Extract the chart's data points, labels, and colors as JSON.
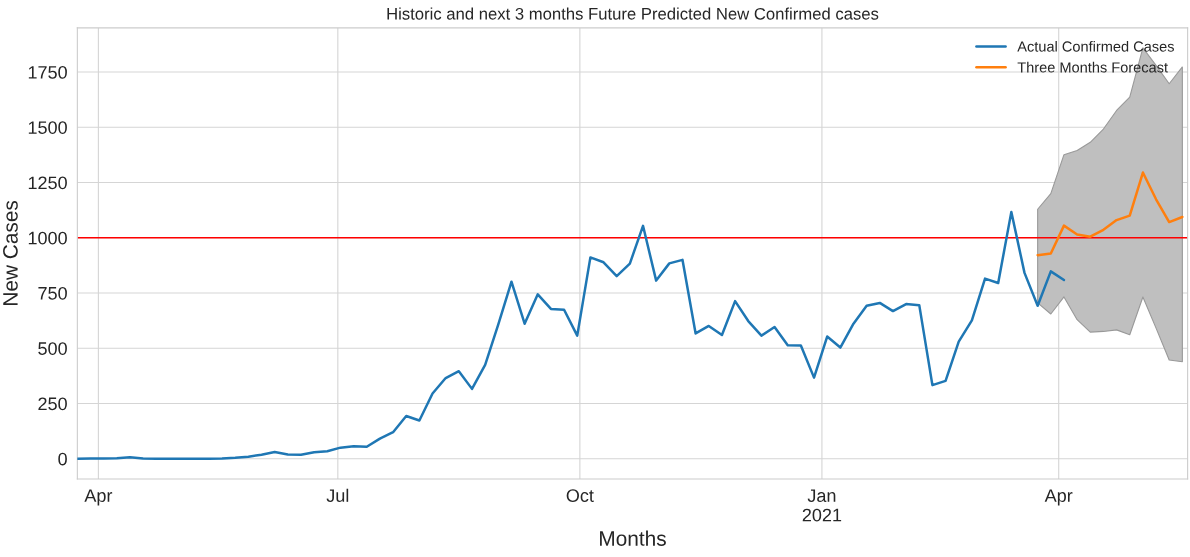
{
  "chart_data": {
    "type": "line",
    "title": "Historic and next 3 months Future Predicted New Confirmed cases",
    "xlabel": "Months",
    "ylabel": "New Cases",
    "series": [
      {
        "name": "Actual Confirmed Cases",
        "color": "#1f77b4",
        "x": [
          "2020-03-24",
          "2020-03-29",
          "2020-04-03",
          "2020-04-08",
          "2020-04-13",
          "2020-04-18",
          "2020-04-23",
          "2020-04-28",
          "2020-05-03",
          "2020-05-08",
          "2020-05-13",
          "2020-05-18",
          "2020-05-23",
          "2020-05-28",
          "2020-06-02",
          "2020-06-07",
          "2020-06-12",
          "2020-06-17",
          "2020-06-22",
          "2020-06-27",
          "2020-07-02",
          "2020-07-07",
          "2020-07-12",
          "2020-07-17",
          "2020-07-22",
          "2020-07-27",
          "2020-08-01",
          "2020-08-06",
          "2020-08-11",
          "2020-08-16",
          "2020-08-21",
          "2020-08-26",
          "2020-08-31",
          "2020-09-05",
          "2020-09-10",
          "2020-09-15",
          "2020-09-20",
          "2020-09-25",
          "2020-09-30",
          "2020-10-05",
          "2020-10-10",
          "2020-10-15",
          "2020-10-20",
          "2020-10-25",
          "2020-10-30",
          "2020-11-04",
          "2020-11-09",
          "2020-11-14",
          "2020-11-19",
          "2020-11-24",
          "2020-11-29",
          "2020-12-04",
          "2020-12-09",
          "2020-12-14",
          "2020-12-19",
          "2020-12-24",
          "2020-12-29",
          "2021-01-03",
          "2021-01-08",
          "2021-01-13",
          "2021-01-18",
          "2021-01-23",
          "2021-01-28",
          "2021-02-02",
          "2021-02-07",
          "2021-02-12",
          "2021-02-17",
          "2021-02-22",
          "2021-02-27",
          "2021-03-04",
          "2021-03-09",
          "2021-03-14",
          "2021-03-19",
          "2021-03-24",
          "2021-03-29",
          "2021-04-03"
        ],
        "values": [
          0,
          1,
          1,
          2,
          6,
          1,
          0,
          0,
          0,
          0,
          0,
          1,
          4,
          9,
          18,
          30,
          19,
          18,
          29,
          34,
          50,
          56,
          54,
          91,
          120,
          193,
          173,
          295,
          365,
          396,
          316,
          425,
          608,
          801,
          611,
          744,
          678,
          674,
          557,
          911,
          889,
          826,
          883,
          1054,
          806,
          884,
          900,
          567,
          601,
          560,
          713,
          623,
          557,
          596,
          513,
          512,
          367,
          553,
          503,
          611,
          692,
          705,
          668,
          700,
          695,
          333,
          352,
          530,
          626,
          815,
          795,
          1117,
          841,
          692,
          848,
          809
        ]
      },
      {
        "name": "Three Months Forecast",
        "color": "#ff7f0e",
        "x": [
          "2021-03-24",
          "2021-03-29",
          "2021-04-03",
          "2021-04-08",
          "2021-04-13",
          "2021-04-18",
          "2021-04-23",
          "2021-04-28",
          "2021-05-03",
          "2021-05-08",
          "2021-05-13",
          "2021-05-18"
        ],
        "values": [
          921,
          929,
          1055,
          1015,
          1005,
          1036,
          1080,
          1100,
          1295,
          1174,
          1071,
          1094
        ],
        "lower": [
          705,
          655,
          732,
          629,
          573,
          576,
          583,
          561,
          732,
          591,
          447,
          439
        ],
        "upper": [
          1129,
          1200,
          1376,
          1395,
          1432,
          1492,
          1576,
          1636,
          1859,
          1780,
          1697,
          1773
        ]
      }
    ],
    "xlim": [
      "2020-03-24",
      "2021-05-20"
    ],
    "xticks": [
      {
        "value": "2020-04-01",
        "label": "Apr"
      },
      {
        "value": "2020-07-01",
        "label": "Jul"
      },
      {
        "value": "2020-10-01",
        "label": "Oct"
      },
      {
        "value": "2021-01-01",
        "label": "Jan\n2021"
      },
      {
        "value": "2021-04-01",
        "label": "Apr"
      }
    ],
    "ylim": [
      -92,
      1950
    ],
    "yticks": [
      0,
      250,
      500,
      750,
      1000,
      1250,
      1500,
      1750
    ],
    "ref_lines": [
      {
        "axis": "y",
        "value": 1000,
        "color": "#ff0000"
      }
    ],
    "grid": true,
    "legend": "top right"
  }
}
